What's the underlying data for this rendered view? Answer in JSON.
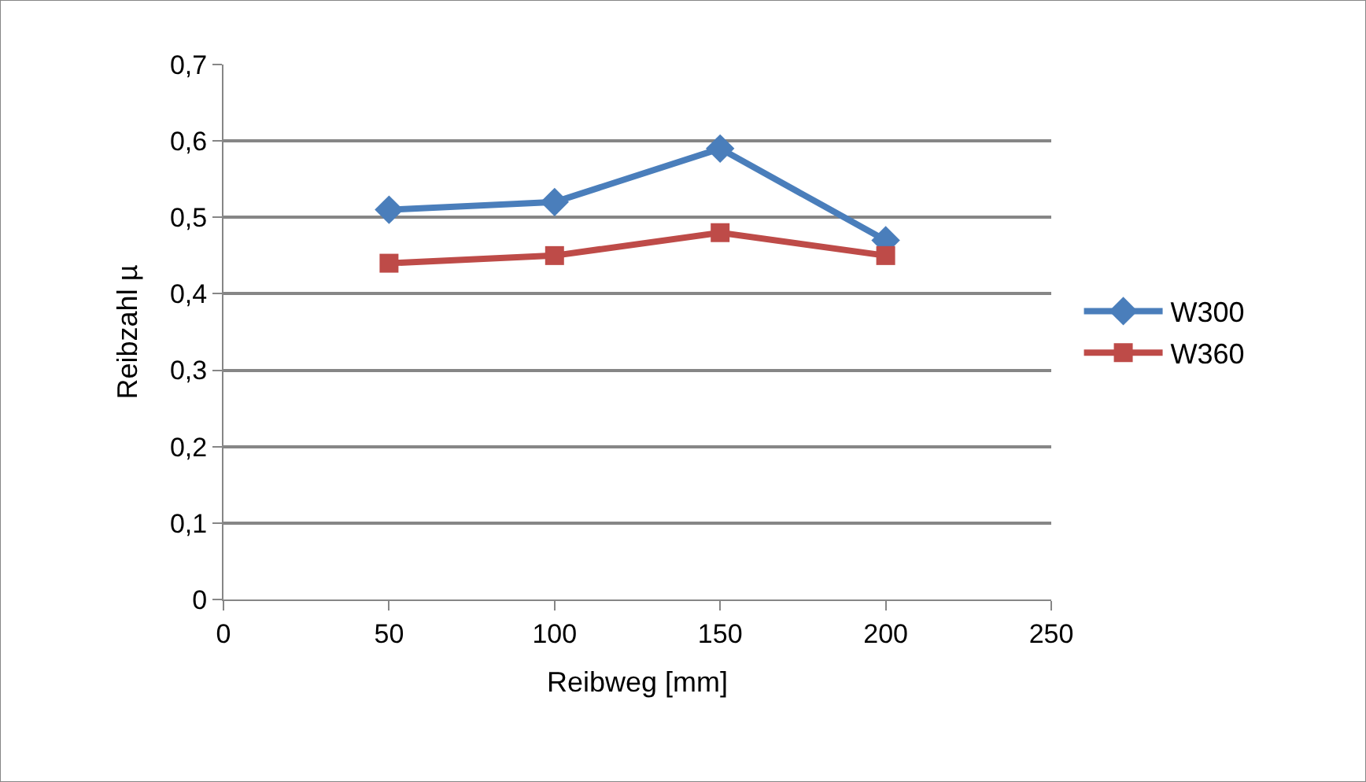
{
  "chart_data": {
    "type": "line",
    "xlabel": "Reibweg [mm]",
    "ylabel": "Reibzahl µ",
    "x": [
      50,
      100,
      150,
      200
    ],
    "series": [
      {
        "name": "W300",
        "color": "#4a7ebb",
        "values": [
          0.51,
          0.52,
          0.59,
          0.47
        ],
        "marker": "diamond"
      },
      {
        "name": "W360",
        "color": "#be4b48",
        "values": [
          0.44,
          0.45,
          0.48,
          0.45
        ],
        "marker": "square"
      }
    ],
    "xlim": [
      0,
      250
    ],
    "xticks": [
      0,
      50,
      100,
      150,
      200,
      250
    ],
    "ylim": [
      0,
      0.7
    ],
    "yticks": [
      {
        "value": 0,
        "label": "0"
      },
      {
        "value": 0.1,
        "label": "0,1"
      },
      {
        "value": 0.2,
        "label": "0,2"
      },
      {
        "value": 0.3,
        "label": "0,3"
      },
      {
        "value": 0.4,
        "label": "0,4"
      },
      {
        "value": 0.5,
        "label": "0,5"
      },
      {
        "value": 0.6,
        "label": "0,6"
      },
      {
        "value": 0.7,
        "label": "0,7"
      }
    ],
    "grid": "y",
    "legend": "right",
    "line_style": "solid"
  }
}
